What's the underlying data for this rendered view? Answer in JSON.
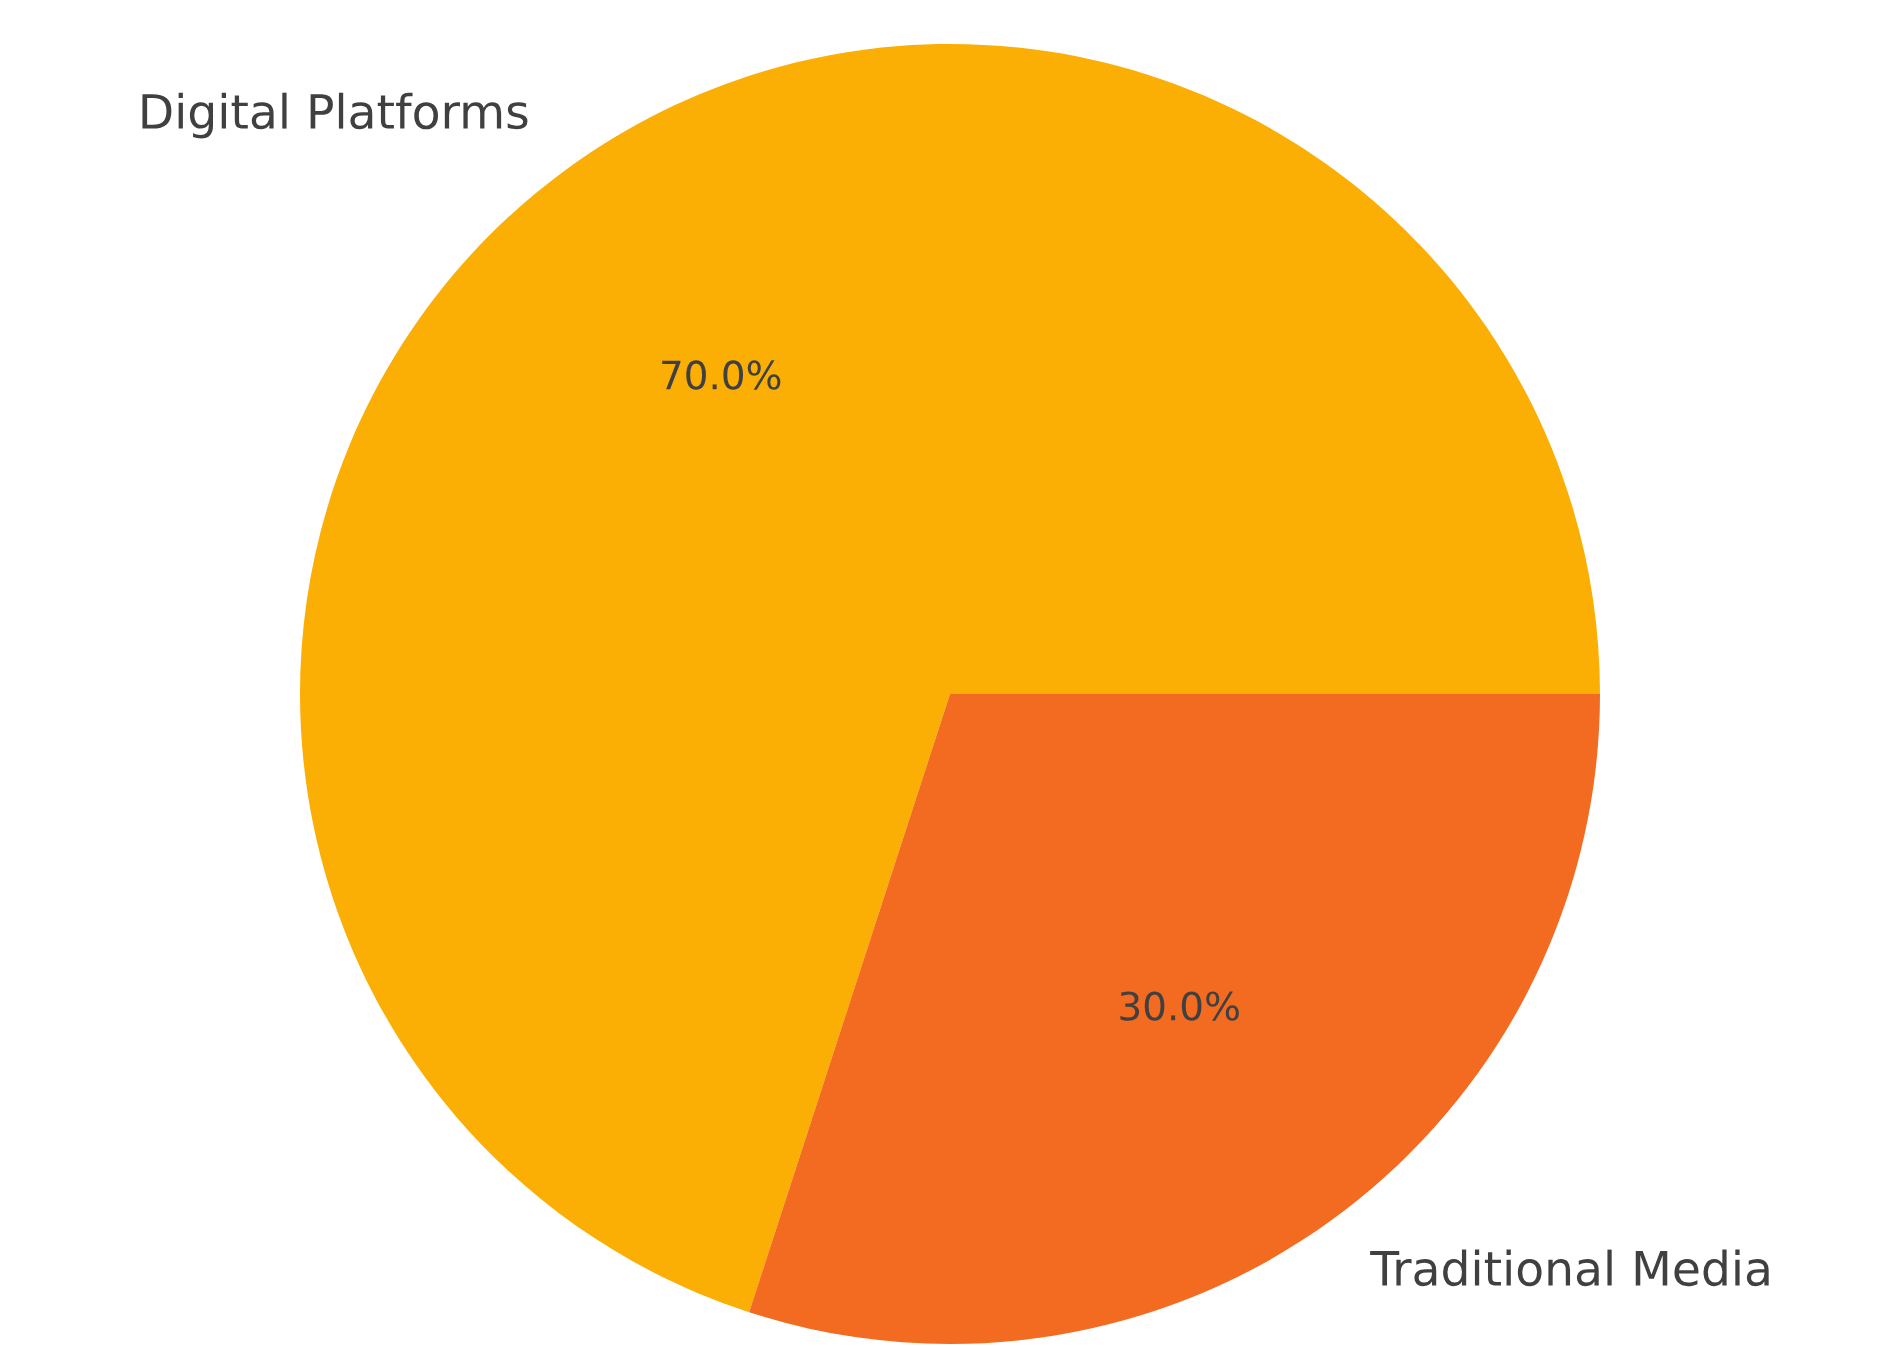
{
  "chart_data": {
    "type": "pie",
    "categories": [
      "Digital Platforms",
      "Traditional Media"
    ],
    "values": [
      70,
      30
    ],
    "colors": [
      "#fbae04",
      "#f26b21"
    ],
    "value_labels": [
      "70.0%",
      "30.0%"
    ]
  }
}
